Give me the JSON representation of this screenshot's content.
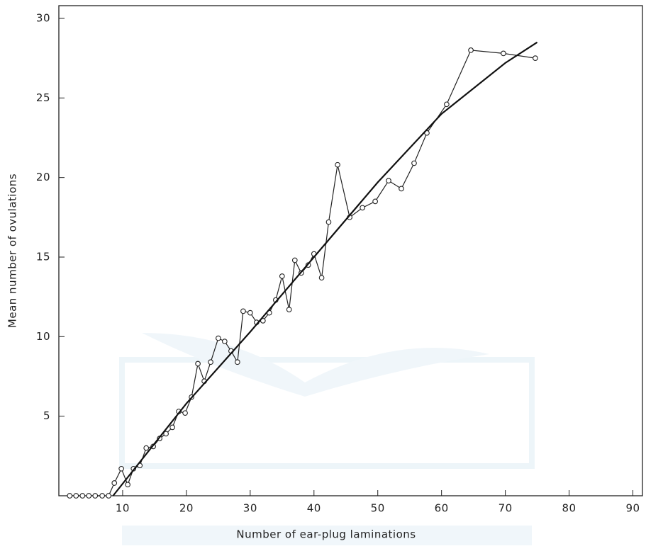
{
  "chart_data": {
    "type": "line",
    "xlabel": "Number of ear-plug laminations",
    "ylabel": "Mean number of ovulations",
    "xlim": [
      0,
      91.5
    ],
    "ylim": [
      0,
      30.8
    ],
    "xticks": [
      10,
      20,
      30,
      40,
      50,
      60,
      70,
      80,
      90
    ],
    "yticks": [
      5,
      10,
      15,
      20,
      25,
      30
    ],
    "series": [
      {
        "color": "#222222",
        "markers": true,
        "x": [
          1.7,
          2.7,
          3.7,
          4.7,
          5.7,
          6.8,
          7.8,
          8.7,
          9.8,
          10.8,
          11.7,
          12.7,
          13.7,
          14.8,
          15.8,
          16.8,
          17.8,
          18.8,
          19.8,
          20.8,
          21.8,
          22.8,
          23.8,
          25,
          26,
          27,
          28,
          28.9,
          30,
          31,
          32,
          33,
          34,
          35,
          36.1,
          37,
          38,
          39.1,
          40,
          41.2,
          42.3,
          43.7,
          45.6,
          47.6,
          49.6,
          51.7,
          53.7,
          55.7,
          57.7,
          60.8,
          64.6,
          69.7,
          74.7
        ],
        "values": [
          0,
          0,
          0,
          0,
          0,
          0,
          0,
          0.8,
          1.7,
          0.7,
          1.7,
          1.9,
          3.0,
          3.1,
          3.6,
          3.9,
          4.3,
          5.3,
          5.2,
          6.2,
          8.3,
          7.2,
          8.4,
          9.9,
          9.7,
          9.1,
          8.4,
          11.6,
          11.5,
          10.9,
          11.0,
          11.5,
          12.3,
          13.8,
          11.7,
          14.8,
          14.0,
          14.5,
          15.2,
          13.7,
          17.2,
          20.8,
          17.5,
          18.1,
          18.5,
          19.8,
          19.3,
          20.9,
          22.8,
          24.6,
          28.0,
          27.8,
          27.5
        ]
      },
      {
        "color": "#111111",
        "markers": false,
        "x": [
          8.5,
          20,
          30,
          40,
          50,
          60,
          70,
          75
        ],
        "values": [
          0,
          5.8,
          10.3,
          15,
          19.7,
          24,
          27.2,
          28.5
        ]
      }
    ]
  }
}
